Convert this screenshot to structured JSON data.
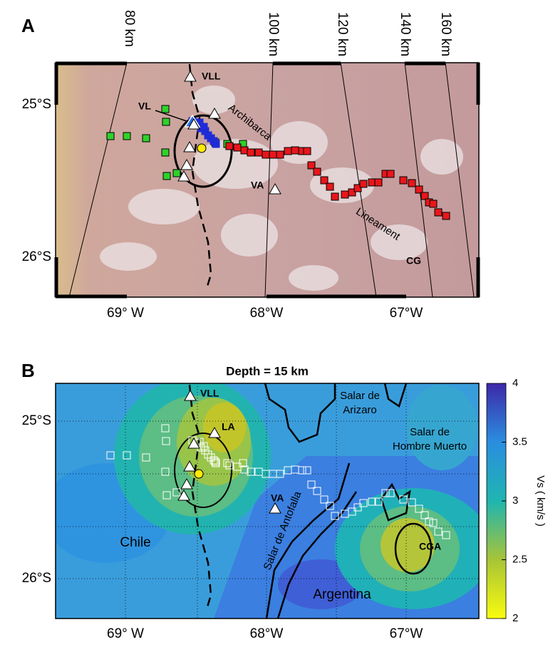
{
  "panel_a": {
    "label": "A",
    "distance_labels": [
      "80 km",
      "100 km",
      "120 km",
      "140 km",
      "160 km"
    ],
    "lat_labels": [
      "25°S",
      "26°S"
    ],
    "lon_labels": [
      "69° W",
      "68°W",
      "67°W"
    ],
    "map_labels": {
      "vll": "VLL",
      "vl": "VL",
      "va": "VA",
      "cg": "CG",
      "archibarca": "Archibarca",
      "lineament": "Lineament"
    }
  },
  "panel_b": {
    "label": "B",
    "title": "Depth = 15 km",
    "lat_labels": [
      "25°S",
      "26°S"
    ],
    "lon_labels": [
      "69° W",
      "68°W",
      "67°W"
    ],
    "map_labels": {
      "vll": "VLL",
      "la": "LA",
      "va": "VA",
      "cga": "CGA",
      "chile": "Chile",
      "argentina": "Argentina",
      "arizaro": [
        "Salar de",
        "Arizaro"
      ],
      "hombre_muerto": [
        "Salar de",
        "Hombre Muerto"
      ],
      "antofalla": "Salar de Antofalla"
    },
    "colorbar": {
      "label": "Vs ( km/s )",
      "range": [
        2,
        4
      ],
      "ticks": [
        2,
        2.5,
        3,
        3.5,
        4
      ]
    }
  }
}
